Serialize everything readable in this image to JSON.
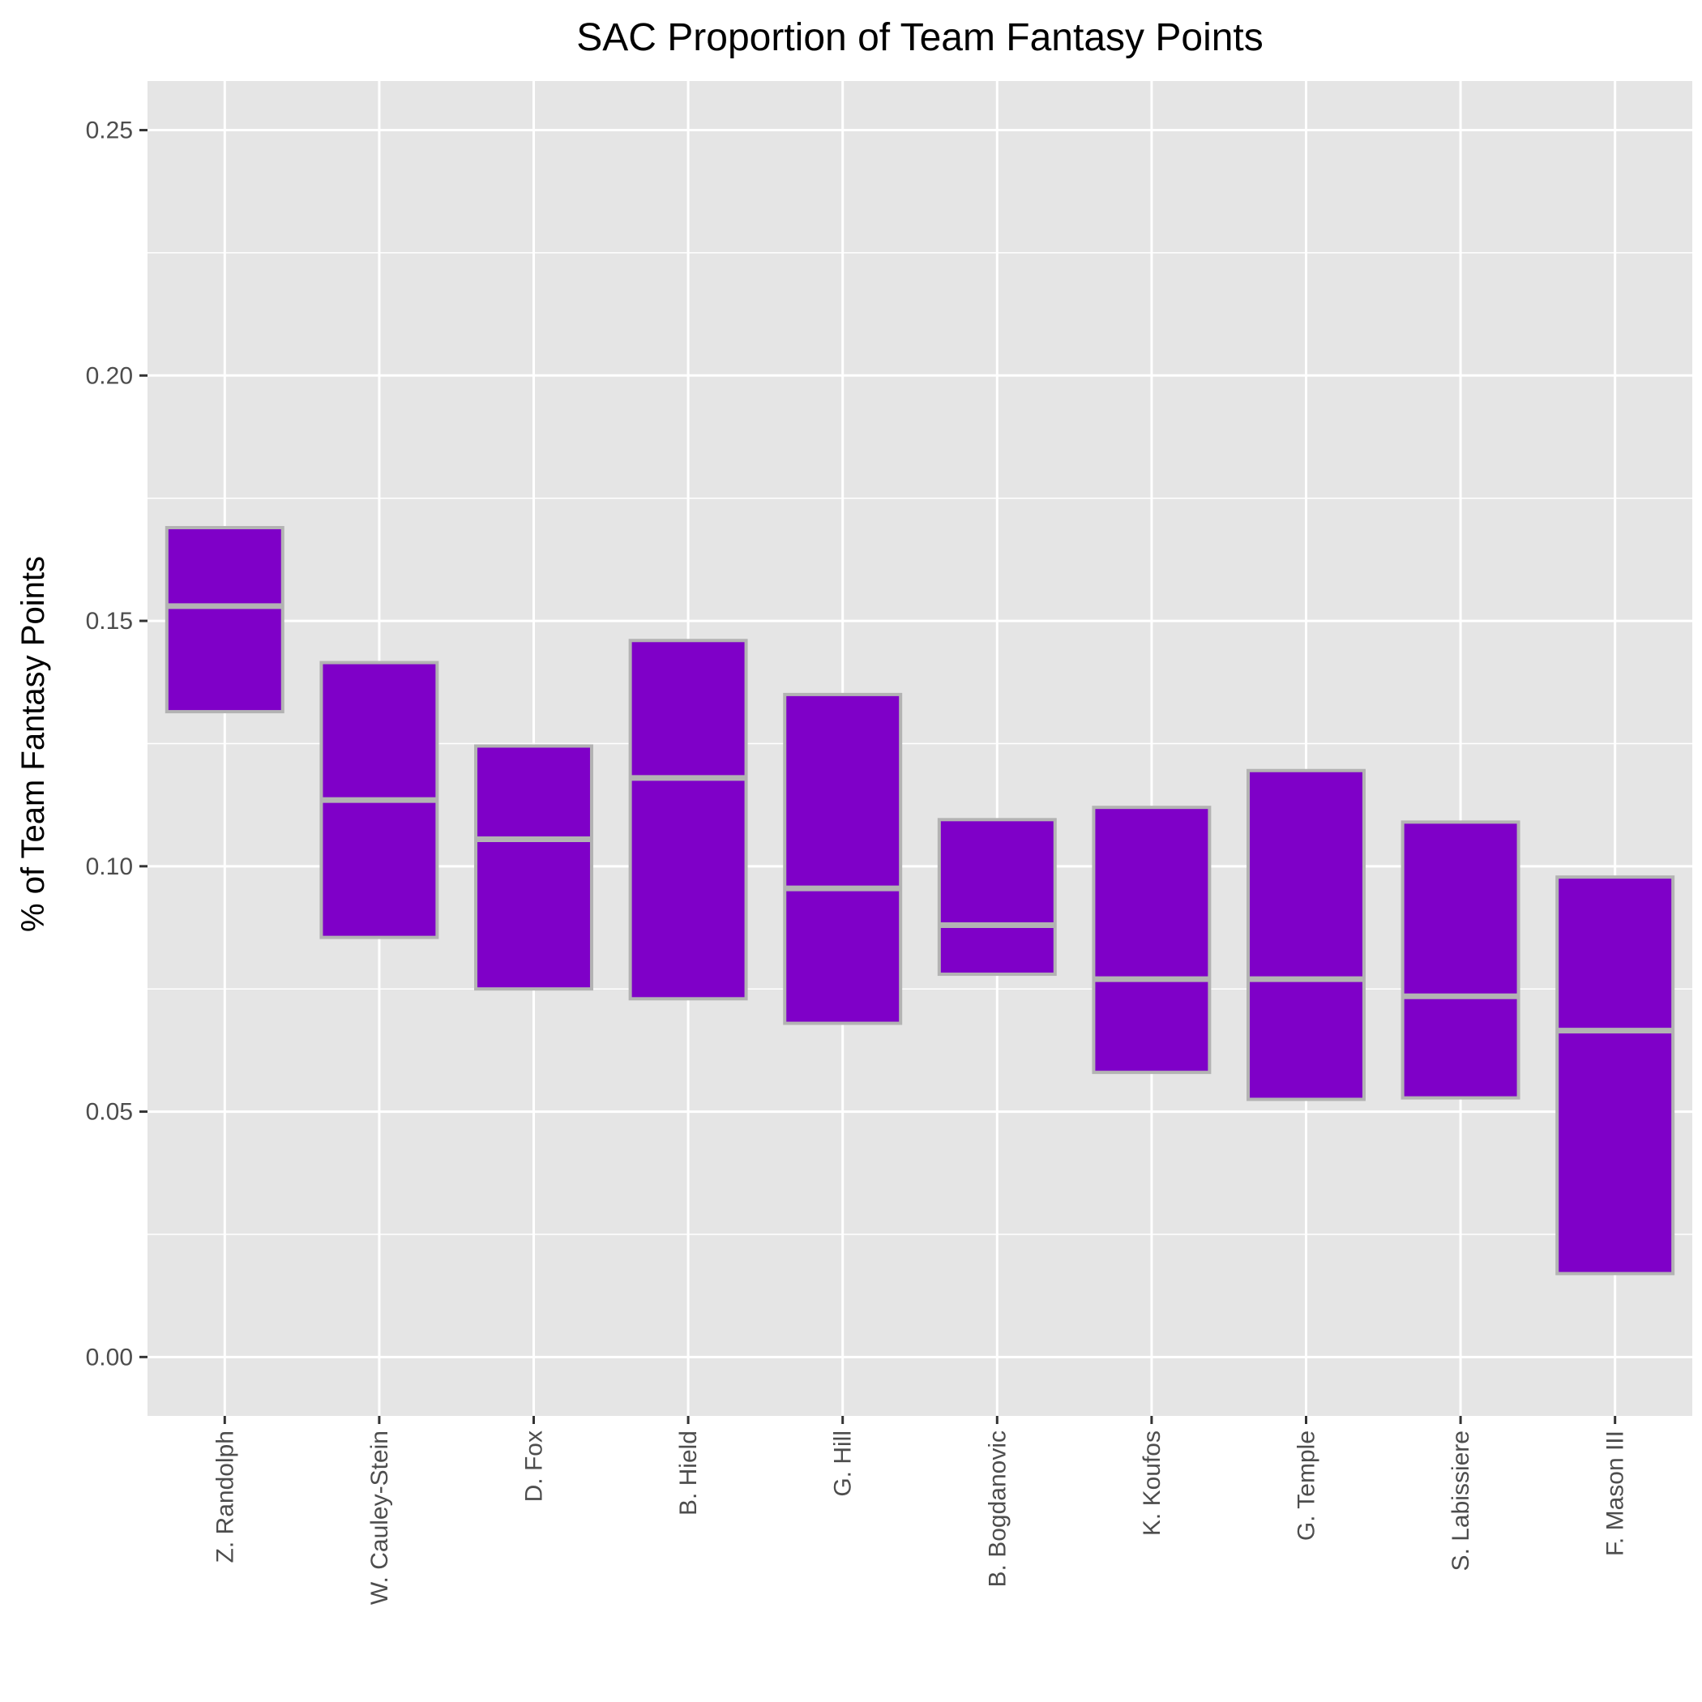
{
  "chart_data": {
    "type": "box",
    "title": "SAC Proportion of Team Fantasy Points",
    "xlabel": "",
    "ylabel": "% of Team Fantasy Points",
    "ylim": [
      -0.012,
      0.26
    ],
    "yticks": [
      0.0,
      0.05,
      0.1,
      0.15,
      0.2,
      0.25
    ],
    "ytick_labels": [
      "0.00",
      "0.05",
      "0.10",
      "0.15",
      "0.20",
      "0.25"
    ],
    "categories": [
      "Z. Randolph",
      "W. Cauley-Stein",
      "D. Fox",
      "B. Hield",
      "G. Hill",
      "B. Bogdanovic",
      "K. Koufos",
      "G. Temple",
      "S. Labissiere",
      "F. Mason III"
    ],
    "boxes": [
      {
        "lower": 0.1315,
        "median": 0.153,
        "upper": 0.169
      },
      {
        "lower": 0.0855,
        "median": 0.1135,
        "upper": 0.1415
      },
      {
        "lower": 0.075,
        "median": 0.1055,
        "upper": 0.1245
      },
      {
        "lower": 0.073,
        "median": 0.118,
        "upper": 0.146
      },
      {
        "lower": 0.068,
        "median": 0.0955,
        "upper": 0.135
      },
      {
        "lower": 0.078,
        "median": 0.088,
        "upper": 0.1095
      },
      {
        "lower": 0.058,
        "median": 0.077,
        "upper": 0.112
      },
      {
        "lower": 0.0525,
        "median": 0.077,
        "upper": 0.1195
      },
      {
        "lower": 0.0528,
        "median": 0.0735,
        "upper": 0.109
      },
      {
        "lower": 0.017,
        "median": 0.0665,
        "upper": 0.0978
      }
    ],
    "grid": true,
    "legend": "none",
    "colors": {
      "box_fill": "#7f00c8",
      "box_outline": "#b3b3b3",
      "panel_background": "#e5e5e5",
      "grid": "#ffffff"
    }
  }
}
